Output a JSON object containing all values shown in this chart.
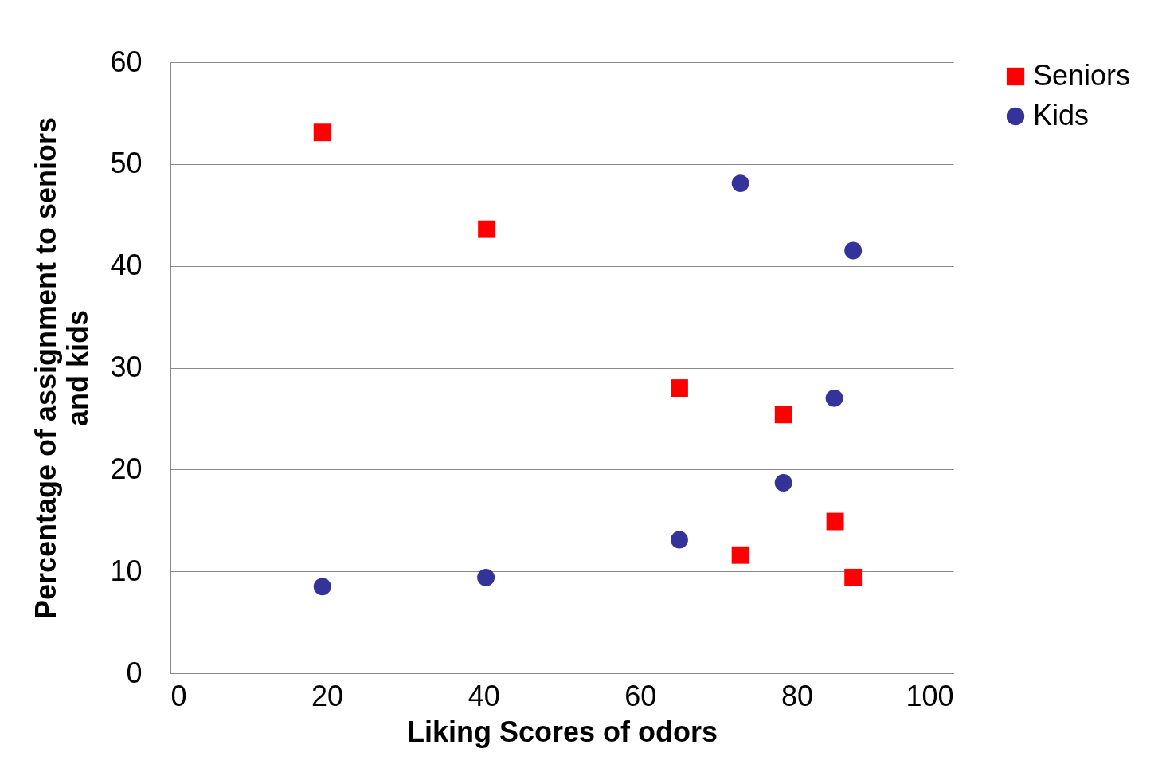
{
  "chart_data": {
    "type": "scatter",
    "xlabel": "Liking Scores of odors",
    "ylabel": "Percentage of assignment to seniors and kids",
    "xlim": [
      0,
      100
    ],
    "xticks": [
      0,
      20,
      40,
      60,
      80,
      100
    ],
    "ylim": [
      0,
      60
    ],
    "yticks": [
      0,
      10,
      20,
      30,
      40,
      50,
      60
    ],
    "grid": "y",
    "legend": "right",
    "series": [
      {
        "name": "Seniors",
        "color": "#ff0000",
        "marker": "square",
        "x": [
          19.4,
          40.4,
          65.0,
          78.3,
          84.9,
          72.8,
          87.2
        ],
        "values": [
          53.1,
          43.6,
          28.0,
          25.4,
          14.9,
          11.6,
          9.4
        ]
      },
      {
        "name": "Kids",
        "color": "#333399",
        "marker": "circle",
        "x": [
          19.4,
          40.3,
          65.0,
          72.8,
          87.2,
          84.8,
          78.3
        ],
        "values": [
          8.5,
          9.4,
          13.1,
          48.1,
          41.5,
          27.0,
          18.7
        ]
      }
    ]
  }
}
